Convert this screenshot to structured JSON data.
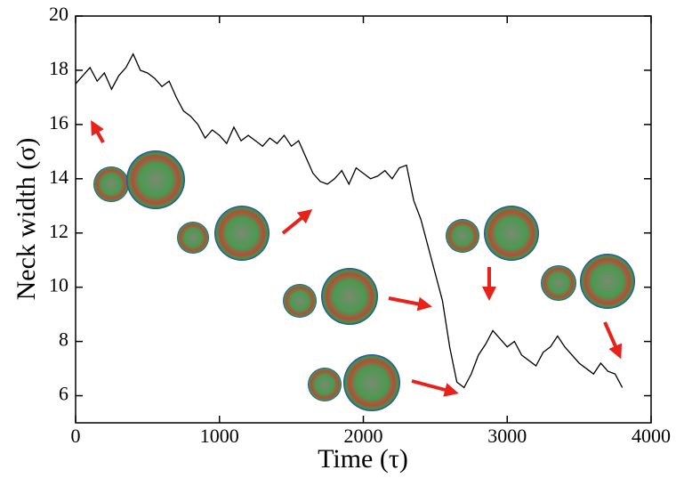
{
  "chart_data": {
    "type": "line",
    "x_label": "Time (τ)",
    "y_label": "Neck width (σ)",
    "xlim": [
      0,
      4000
    ],
    "xticks": [
      0,
      1000,
      2000,
      3000,
      4000
    ],
    "ylim": [
      5,
      20
    ],
    "yticks": [
      6,
      8,
      10,
      12,
      14,
      16,
      18,
      20
    ],
    "series": [
      {
        "color": "#000000",
        "x": [
          0,
          50,
          100,
          150,
          200,
          250,
          300,
          350,
          400,
          450,
          500,
          550,
          600,
          650,
          700,
          750,
          800,
          850,
          900,
          950,
          1000,
          1050,
          1100,
          1150,
          1200,
          1250,
          1300,
          1350,
          1400,
          1450,
          1500,
          1550,
          1600,
          1650,
          1700,
          1750,
          1800,
          1850,
          1900,
          1950,
          2000,
          2050,
          2100,
          2150,
          2200,
          2250,
          2300,
          2350,
          2400,
          2450,
          2500,
          2550,
          2600,
          2650,
          2700,
          2750,
          2800,
          2850,
          2900,
          2950,
          3000,
          3050,
          3100,
          3150,
          3200,
          3250,
          3300,
          3350,
          3400,
          3450,
          3500,
          3550,
          3600,
          3650,
          3700,
          3750,
          3800
        ],
        "values": [
          17.5,
          17.8,
          18.1,
          17.6,
          17.9,
          17.3,
          17.8,
          18.1,
          18.6,
          18.0,
          17.9,
          17.7,
          17.4,
          17.6,
          17.0,
          16.5,
          16.3,
          16.0,
          15.5,
          15.8,
          15.6,
          15.3,
          15.9,
          15.4,
          15.6,
          15.4,
          15.2,
          15.5,
          15.3,
          15.6,
          15.2,
          15.4,
          14.8,
          14.2,
          13.9,
          13.8,
          14.0,
          14.3,
          13.8,
          14.4,
          14.2,
          14.0,
          14.1,
          14.3,
          14.0,
          14.4,
          14.5,
          13.2,
          12.5,
          11.5,
          10.5,
          9.5,
          7.8,
          6.5,
          6.3,
          6.8,
          7.5,
          7.9,
          8.4,
          8.1,
          7.8,
          8.0,
          7.5,
          7.3,
          7.1,
          7.6,
          7.8,
          8.2,
          7.8,
          7.5,
          7.2,
          7.0,
          6.8,
          7.2,
          6.9,
          6.8,
          6.3
        ]
      }
    ]
  }
}
